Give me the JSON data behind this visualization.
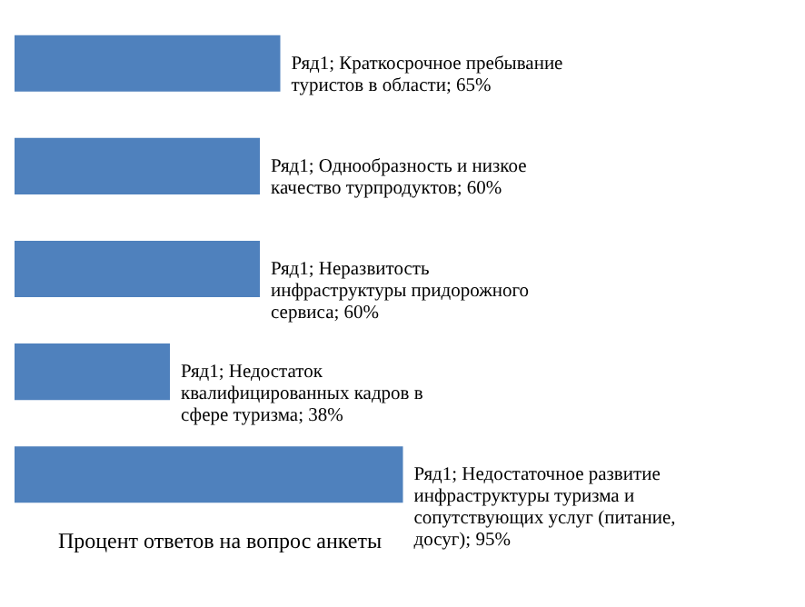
{
  "chart_data": {
    "type": "bar",
    "orientation": "horizontal",
    "xlabel": "Процент ответов на вопрос анкеты",
    "categories": [
      null,
      null,
      null,
      null,
      null
    ],
    "values": [
      65,
      60,
      60,
      38,
      95
    ],
    "color": "#4f81bd",
    "value_labels": [
      "Ряд1; Краткосрочное пребывание туристов в области; 65%",
      "Ряд1; Однообразность и низкое качество турпродуктов; 60%",
      "Ряд1; Неразвитость инфраструктуры придорожного сервиса; 60%",
      "Ряд1; Недостаток квалифицированных кадров в сфере туризма; 38%",
      "Ряд1; Недостаточное развитие инфраструктуры туризма и сопутствующих услуг (питание, досуг); 95%"
    ],
    "tick_labels": false,
    "grid": false
  }
}
